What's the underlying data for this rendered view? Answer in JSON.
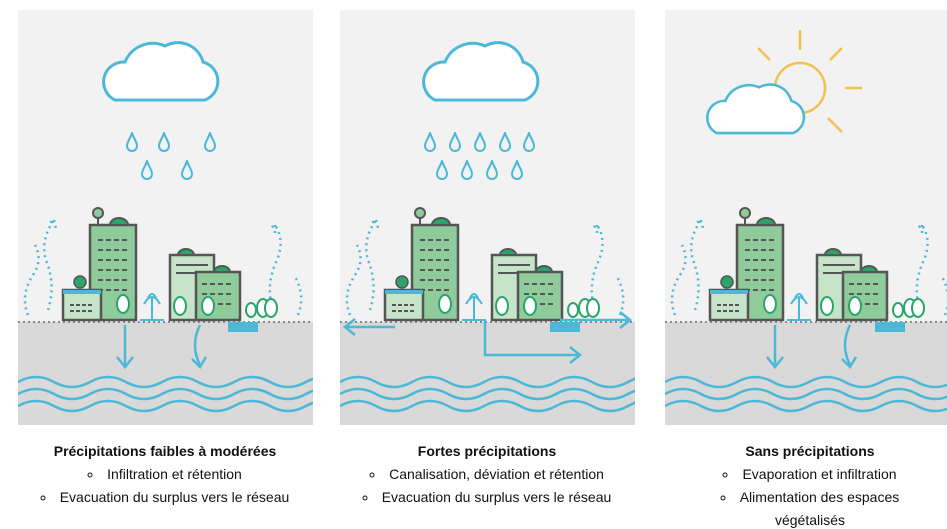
{
  "panels": [
    {
      "title": "Précipitations faibles à modérées",
      "items": [
        "Infiltration et rétention",
        "Evacuation du surplus vers le réseau"
      ]
    },
    {
      "title": "Fortes précipitations",
      "items": [
        "Canalisation, déviation et rétention",
        "Evacuation du surplus vers le réseau"
      ]
    },
    {
      "title": "Sans précipitations",
      "items": [
        "Evaporation et infiltration",
        "Alimentation des espaces végétalisés"
      ]
    }
  ]
}
